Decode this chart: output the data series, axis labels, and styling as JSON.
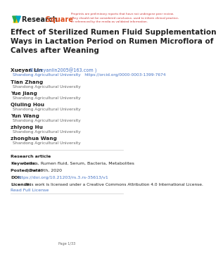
{
  "bg_color": "#ffffff",
  "preprint_notice": "Preprints are preliminary reports that have not undergone peer review.\nThey should not be considered conclusive, used to inform clinical practice,\nor referenced by the media as validated information.",
  "title": "Effect of Sterilized Rumen Fluid Supplementation\nWays in Lactation Period on Rumen Microflora of\nCalves after Weaning",
  "authors": [
    {
      "name": "Xueyan Lin",
      "email": "xueyanlin2005@163.com",
      "orcid": "https://orcid.org/0000-0003-1399-7674",
      "affil": "Shandong Agricultural University"
    },
    {
      "name": "Tian Zhang",
      "affil": "Shandong Agricultural University"
    },
    {
      "name": "Yue Jiang",
      "affil": "Shandong Agricultural University"
    },
    {
      "name": "Qiuling Hou",
      "affil": "Shandong Agricultural University"
    },
    {
      "name": "Yun Wang",
      "affil": "Shandong Agricultural University"
    },
    {
      "name": "zhiyong Hu",
      "affil": "Shandong Agricultural University"
    },
    {
      "name": "zhonghua Wang",
      "affil": "Shandong Agricultural University"
    }
  ],
  "article_type": "Research article",
  "keywords_label": "Keywords:",
  "keywords": "Calves, Rumen fluid, Serum, Bacteria, Metabolites",
  "posted_date_label": "Posted Date:",
  "posted_date": "June 29th, 2020",
  "doi_label": "DOI:",
  "doi": "https://doi.org/10.21203/rs.3.rs-35613/v1",
  "license_label": "License:",
  "license_text": "  This work is licensed under a Creative Commons Attribution 4.0 International License.",
  "read_full": "Read Full License",
  "page_note": "Page 1/33",
  "title_fontsize": 7.5,
  "author_name_fontsize": 5.2,
  "affil_fontsize": 4.2,
  "body_fontsize": 4.5,
  "label_fontsize": 4.5,
  "small_fontsize": 3.5,
  "preprint_fontsize": 3.0,
  "logo_fontsize": 7.0,
  "separator_color": "#cccccc",
  "link_color": "#4472c4",
  "red_color": "#cc3333",
  "dark_color": "#222222",
  "light_color": "#666666"
}
